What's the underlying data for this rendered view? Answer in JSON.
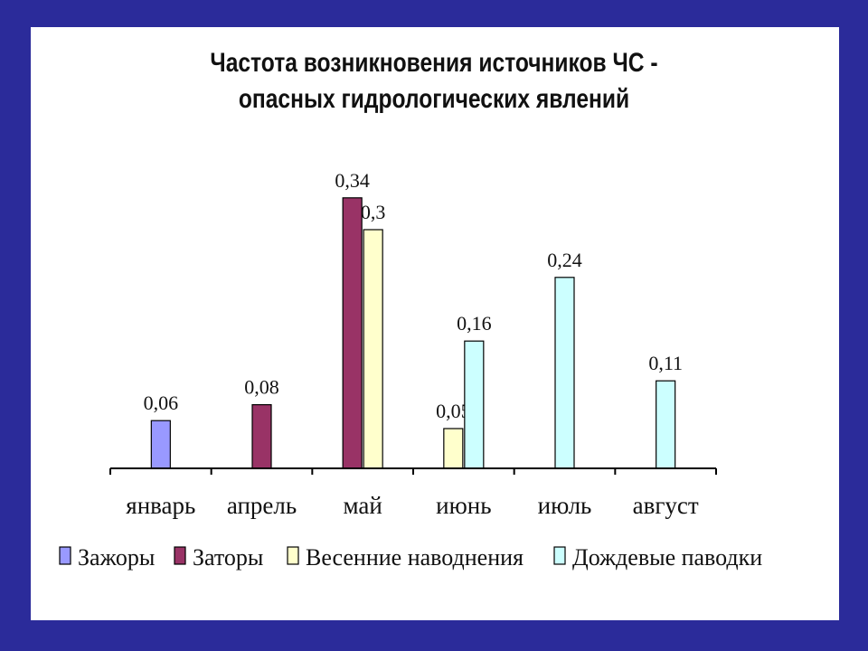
{
  "chart_data": {
    "type": "bar",
    "title_lines": [
      "Частота возникновения источников ЧС -",
      "опасных гидрологических явлений"
    ],
    "categories": [
      "январь",
      "апрель",
      "май",
      "июнь",
      "июль",
      "август"
    ],
    "series": [
      {
        "name": "Зажоры",
        "color": "#9999ff",
        "values": [
          0.06,
          null,
          null,
          null,
          null,
          null
        ],
        "labels": [
          "0,06",
          "",
          "",
          "",
          "",
          ""
        ]
      },
      {
        "name": "Заторы",
        "color": "#993366",
        "values": [
          null,
          0.08,
          0.34,
          null,
          null,
          null
        ],
        "labels": [
          "",
          "0,08",
          "0,34",
          "",
          "",
          ""
        ]
      },
      {
        "name": "Весенние наводнения",
        "color": "#ffffcc",
        "values": [
          null,
          null,
          0.3,
          0.05,
          null,
          null
        ],
        "labels": [
          "",
          "",
          "0,3",
          "0,05",
          "",
          ""
        ]
      },
      {
        "name": "Дождевые паводки",
        "color": "#ccffff",
        "values": [
          null,
          null,
          null,
          0.16,
          0.24,
          0.11
        ],
        "labels": [
          "",
          "",
          "",
          "0,16",
          "0,24",
          "0,11"
        ]
      }
    ],
    "ylim": [
      0,
      0.4
    ],
    "grid": false,
    "legend_position": "bottom"
  }
}
